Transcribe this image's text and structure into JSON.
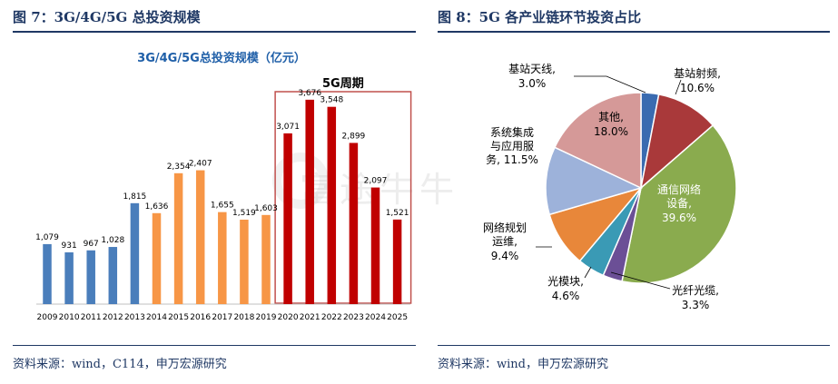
{
  "left": {
    "figure_title": "图 7：3G/4G/5G 总投资规模",
    "source": "资料来源：wind，C114，申万宏源研究"
  },
  "right": {
    "figure_title": "图 8：5G 各产业链环节投资占比",
    "source": "资料来源：wind，申万宏源研究"
  },
  "watermark": "富途牛牛",
  "colors": {
    "heading": "#1f3864",
    "title_text": "#1f5fa8",
    "blue": "#4a7ebb",
    "orange": "#f79646",
    "red": "#c00000"
  },
  "chart_data": [
    {
      "type": "bar",
      "title": "3G/4G/5G总投资规模（亿元）",
      "annotation": "5G周期",
      "categories": [
        "2009",
        "2010",
        "2011",
        "2012",
        "2013",
        "2014",
        "2015",
        "2016",
        "2017",
        "2018",
        "2019",
        "2020",
        "2021",
        "2022",
        "2023",
        "2024",
        "2025"
      ],
      "values": [
        1079,
        931,
        967,
        1028,
        1815,
        1636,
        2354,
        2407,
        1655,
        1519,
        1603,
        3071,
        3676,
        3548,
        2899,
        2097,
        1521
      ],
      "value_labels": [
        "1,079",
        "931",
        "967",
        "1,028",
        "1,815",
        "1,636",
        "2,354",
        "2,407",
        "1,655",
        "1,519",
        "1,603",
        "3,071",
        "3,676",
        "3,548",
        "2,899",
        "2,097",
        "1,521"
      ],
      "bar_colors": [
        "#4a7ebb",
        "#4a7ebb",
        "#4a7ebb",
        "#4a7ebb",
        "#4a7ebb",
        "#f79646",
        "#f79646",
        "#f79646",
        "#f79646",
        "#f79646",
        "#f79646",
        "#c00000",
        "#c00000",
        "#c00000",
        "#c00000",
        "#c00000",
        "#c00000"
      ],
      "highlight_range": [
        "2020",
        "2025"
      ],
      "ylim": [
        0,
        4000
      ],
      "grid": false
    },
    {
      "type": "pie",
      "slices": [
        {
          "label": "基站天线,",
          "pct": "3.0%",
          "value": 3.0,
          "color": "#3a6bb0"
        },
        {
          "label": "基站射频,",
          "pct": "10.6%",
          "value": 10.6,
          "color": "#a9393a"
        },
        {
          "label": "通信网络设备,",
          "pct": "39.6%",
          "value": 39.6,
          "color": "#8aab4e"
        },
        {
          "label": "光纤光缆,",
          "pct": "3.3%",
          "value": 3.3,
          "color": "#6b4f96"
        },
        {
          "label": "光模块,",
          "pct": "4.6%",
          "value": 4.6,
          "color": "#3a9ab5"
        },
        {
          "label": "网络规划运维,",
          "pct": "9.4%",
          "value": 9.4,
          "color": "#e8873a"
        },
        {
          "label": "系统集成与应用服务,",
          "pct": "11.5%",
          "value": 11.5,
          "color": "#9db2da"
        },
        {
          "label": "其他,",
          "pct": "18.0%",
          "value": 18.0,
          "color": "#d59998"
        }
      ],
      "start_angle_deg": 0,
      "direction": "clockwise"
    }
  ]
}
